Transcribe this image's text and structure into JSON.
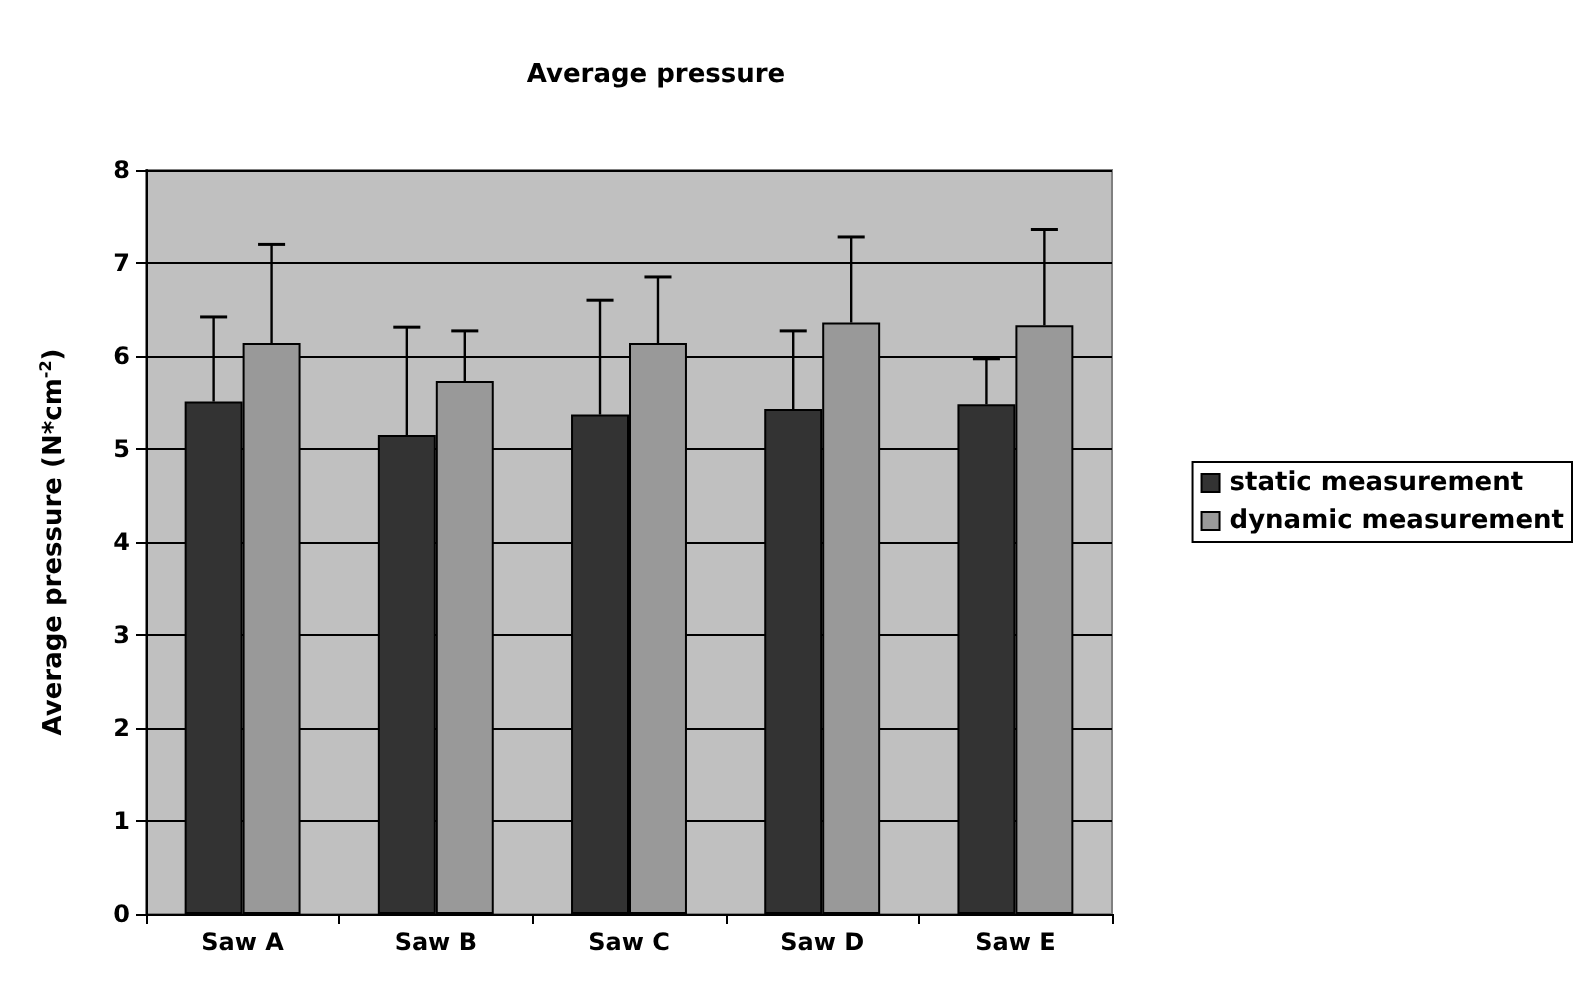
{
  "chart_data": {
    "type": "bar",
    "title": "Average pressure",
    "ylabel": "Average pressure (N*cm$^{-2}$)",
    "categories": [
      "Saw A",
      "Saw B",
      "Saw C",
      "Saw D",
      "Saw E"
    ],
    "series": [
      {
        "name": "static measurement",
        "color": "#333333",
        "values": [
          5.51,
          5.15,
          5.37,
          5.43,
          5.48
        ],
        "errors": [
          [
            5.51,
            6.42
          ],
          [
            5.15,
            6.31
          ],
          [
            5.37,
            6.6
          ],
          [
            5.43,
            6.27
          ],
          [
            5.48,
            5.97
          ]
        ]
      },
      {
        "name": "dynamic measurement",
        "color": "#999999",
        "values": [
          6.14,
          5.73,
          6.14,
          6.36,
          6.33
        ],
        "errors": [
          [
            6.14,
            7.2
          ],
          [
            5.73,
            6.27
          ],
          [
            6.14,
            6.85
          ],
          [
            6.36,
            7.28
          ],
          [
            6.33,
            7.36
          ]
        ]
      }
    ],
    "ylim": [
      0,
      8
    ],
    "yticks": [
      0,
      1,
      2,
      3,
      4,
      5,
      6,
      7,
      8
    ],
    "grid": "y",
    "legend": "right"
  }
}
